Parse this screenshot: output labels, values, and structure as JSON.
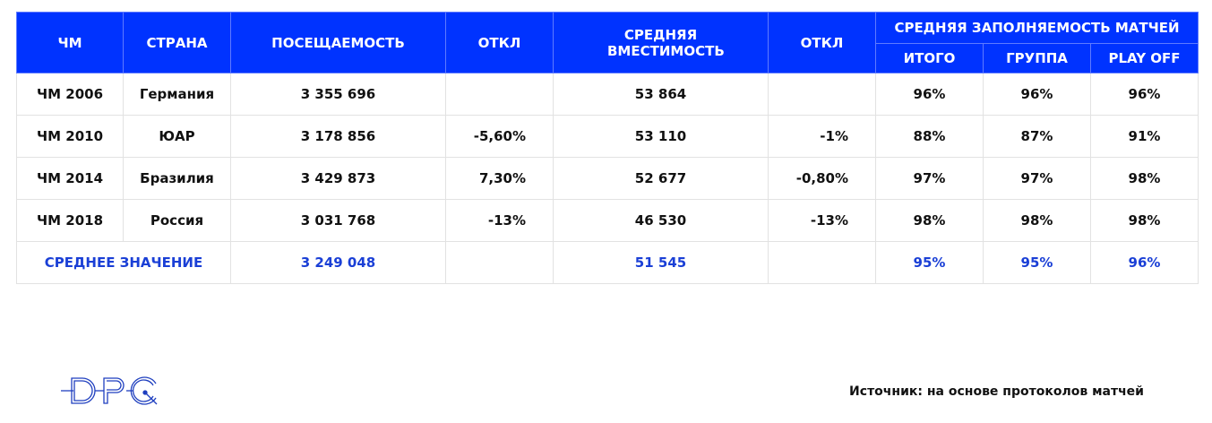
{
  "header": {
    "wc": "ЧМ",
    "country": "СТРАНА",
    "attendance": "ПОСЕЩАЕМОСТЬ",
    "dev1": "ОТКЛ",
    "capacity": "СРЕДНЯЯ ВМЕСТИМОСТЬ",
    "dev2": "ОТКЛ",
    "fill_group": "СРЕДНЯЯ ЗАПОЛНЯЕМОСТЬ МАТЧЕЙ",
    "total": "ИТОГО",
    "group": "ГРУППА",
    "playoff": "PLAY OFF"
  },
  "rows": [
    {
      "wc": "ЧМ 2006",
      "country": "Германия",
      "attendance": "3 355 696",
      "dev1": "",
      "capacity": "53 864",
      "dev2": "",
      "total": "96%",
      "group": "96%",
      "playoff": "96%"
    },
    {
      "wc": "ЧМ 2010",
      "country": "ЮАР",
      "attendance": "3 178 856",
      "dev1": "-5,60%",
      "capacity": "53 110",
      "dev2": "-1%",
      "total": "88%",
      "group": "87%",
      "playoff": "91%"
    },
    {
      "wc": "ЧМ 2014",
      "country": "Бразилия",
      "attendance": "3 429 873",
      "dev1": "7,30%",
      "capacity": "52 677",
      "dev2": "-0,80%",
      "total": "97%",
      "group": "97%",
      "playoff": "98%"
    },
    {
      "wc": "ЧМ 2018",
      "country": "Россия",
      "attendance": "3 031 768",
      "dev1": "-13%",
      "capacity": "46 530",
      "dev2": "-13%",
      "total": "98%",
      "group": "98%",
      "playoff": "98%"
    }
  ],
  "average": {
    "label": "СРЕДНЕЕ ЗНАЧЕНИЕ",
    "attendance": "3 249 048",
    "capacity": "51 545",
    "total": "95%",
    "group": "95%",
    "playoff": "96%"
  },
  "logo": "DPG",
  "source": "Источник: на основе протоколов матчей",
  "colors": {
    "header": "#0033ff",
    "accent": "#1a3fd6"
  }
}
